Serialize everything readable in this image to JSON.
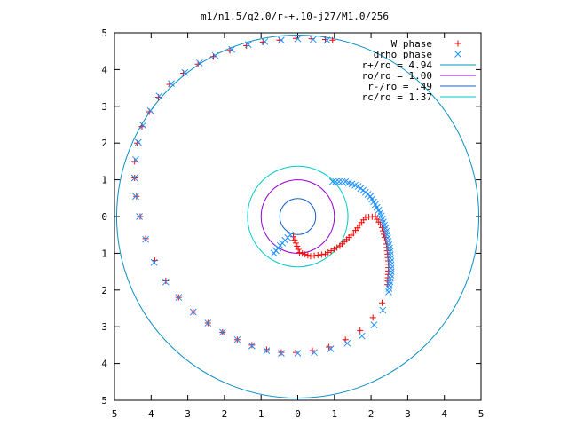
{
  "chart_data": {
    "type": "scatter",
    "title": "m1/n1.5/q2.0/r-+.10-j27/M1.0/256",
    "xlabel": "",
    "ylabel": "",
    "xlim": [
      -5,
      5
    ],
    "ylim": [
      -5,
      5
    ],
    "x_ticks": [
      -5,
      -4,
      -3,
      -2,
      -1,
      0,
      1,
      2,
      3,
      4,
      5
    ],
    "y_ticks": [
      -5,
      -4,
      -3,
      -2,
      -1,
      0,
      1,
      2,
      3,
      4,
      5
    ],
    "x_tick_labels": [
      "5",
      "4",
      "3",
      "2",
      "1",
      "0",
      "1",
      "2",
      "3",
      "4",
      "5"
    ],
    "y_tick_labels": [
      "5",
      "4",
      "3",
      "2",
      "1",
      "0",
      "1",
      "2",
      "3",
      "4",
      "5"
    ],
    "grid": false,
    "legend_position": "top-right",
    "series": [
      {
        "name": "W phase",
        "kind": "points",
        "marker": "plus",
        "color": "#ff0000",
        "x": [
          -0.12,
          0.05,
          0.35,
          0.75,
          1.15,
          1.52,
          1.85,
          2.12,
          2.3,
          2.42,
          2.48,
          2.45,
          2.3,
          2.05,
          1.7,
          1.3,
          0.85,
          0.4,
          -0.05,
          -0.45,
          -0.85,
          -1.25,
          -1.65,
          -2.05,
          -2.45,
          -2.85,
          -3.25,
          -3.6,
          -3.9,
          -4.15,
          -4.3,
          -4.4,
          -4.45,
          -4.45,
          -4.38,
          -4.25,
          -4.05,
          -3.8,
          -3.5,
          -3.12,
          -2.72,
          -2.3,
          -1.85,
          -1.4,
          -0.95,
          -0.5,
          -0.05,
          0.38,
          0.75,
          0.95
        ],
        "y": [
          -0.55,
          -0.98,
          -1.08,
          -1.02,
          -0.8,
          -0.45,
          -0.02,
          0.0,
          -0.3,
          -0.75,
          -1.3,
          -1.85,
          -2.35,
          -2.75,
          -3.1,
          -3.35,
          -3.55,
          -3.65,
          -3.7,
          -3.7,
          -3.62,
          -3.5,
          -3.35,
          -3.15,
          -2.9,
          -2.6,
          -2.2,
          -1.75,
          -1.2,
          -0.6,
          0.0,
          0.55,
          1.05,
          1.5,
          2.0,
          2.45,
          2.85,
          3.25,
          3.6,
          3.9,
          4.15,
          4.35,
          4.52,
          4.65,
          4.75,
          4.8,
          4.85,
          4.84,
          4.82,
          4.8
        ]
      },
      {
        "name": "drho phase",
        "kind": "points",
        "marker": "cross",
        "color": "#1e90ff",
        "x": [
          -0.65,
          -0.42,
          -0.2,
          0.95,
          1.3,
          1.65,
          1.98,
          2.25,
          2.42,
          2.52,
          2.55,
          2.48,
          2.32,
          2.08,
          1.75,
          1.35,
          0.9,
          0.45,
          0.0,
          -0.45,
          -0.85,
          -1.25,
          -1.65,
          -2.05,
          -2.45,
          -2.85,
          -3.25,
          -3.6,
          -3.92,
          -4.15,
          -4.32,
          -4.42,
          -4.45,
          -4.42,
          -4.35,
          -4.22,
          -4.02,
          -3.78,
          -3.45,
          -3.08,
          -2.68,
          -2.25,
          -1.8,
          -1.35,
          -0.9,
          -0.45,
          0.0,
          0.42,
          0.8
        ],
        "y": [
          -1.0,
          -0.72,
          -0.5,
          0.95,
          0.95,
          0.82,
          0.55,
          0.1,
          -0.4,
          -0.95,
          -1.5,
          -2.05,
          -2.55,
          -2.95,
          -3.25,
          -3.45,
          -3.6,
          -3.7,
          -3.72,
          -3.72,
          -3.65,
          -3.52,
          -3.35,
          -3.15,
          -2.9,
          -2.6,
          -2.2,
          -1.78,
          -1.25,
          -0.62,
          0.0,
          0.55,
          1.05,
          1.55,
          2.02,
          2.48,
          2.88,
          3.28,
          3.62,
          3.92,
          4.18,
          4.38,
          4.55,
          4.68,
          4.76,
          4.8,
          4.84,
          4.82,
          4.8
        ]
      },
      {
        "name": "r+/ro = 4.94",
        "kind": "circle",
        "radius": 4.94,
        "color": "#0a90c0"
      },
      {
        "name": "ro/ro = 1.00",
        "kind": "circle",
        "radius": 1.0,
        "color": "#9400d3"
      },
      {
        "name": "r-/ro = .49",
        "kind": "circle",
        "radius": 0.49,
        "color": "#1060c0"
      },
      {
        "name": "rc/ro = 1.37",
        "kind": "circle",
        "radius": 1.37,
        "color": "#00c8c8"
      }
    ]
  }
}
